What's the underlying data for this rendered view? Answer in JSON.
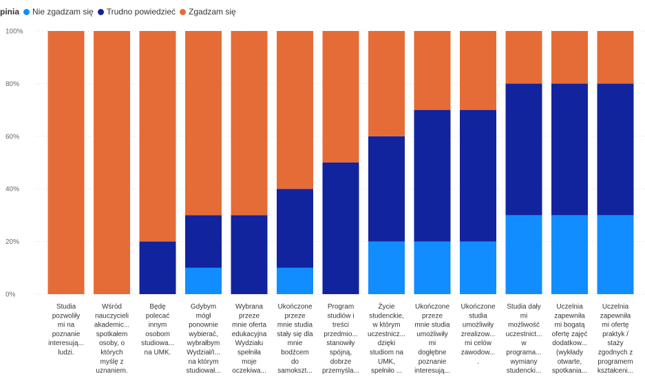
{
  "legend": {
    "title": "pinia",
    "items": [
      {
        "label": "Nie zgadzam się",
        "color": "#118dff"
      },
      {
        "label": "Trudno powiedzieć",
        "color": "#12239e"
      },
      {
        "label": "Zgadzam się",
        "color": "#e66c37"
      }
    ]
  },
  "chart_data": {
    "type": "bar",
    "stacked": true,
    "ylim": [
      0,
      100
    ],
    "ytick_labels": [
      "100%",
      "80%",
      "60%",
      "40%",
      "20%",
      "0%"
    ],
    "grid": true,
    "legend_position": "top-left",
    "categories": [
      [
        "Studia",
        "pozwoliły",
        "mi na",
        "poznanie",
        "interesują...",
        "ludzi."
      ],
      [
        "Wśród",
        "nauczycieli",
        "akademic...",
        "spotkałem",
        "osoby, o",
        "których",
        "myślę z",
        "uznaniem."
      ],
      [
        "Będę",
        "polecać",
        "innym",
        "osobom",
        "studiowa...",
        "na UMK."
      ],
      [
        "Gdybym",
        "mógł",
        "ponownie",
        "wybierać,",
        "wybrałbym",
        "Wydział/I...",
        "na którym",
        "studiował..."
      ],
      [
        "Wybrana",
        "przeze",
        "mnie oferta",
        "edukacyjna",
        "Wydziału",
        "spełniła",
        "moje",
        "oczekiwa..."
      ],
      [
        "Ukończone",
        "przeze",
        "mnie studia",
        "stały się dla",
        "mnie",
        "bodźcem",
        "do",
        "samokszt..."
      ],
      [
        "Program",
        "studiów i",
        "treści",
        "przedmio...",
        "stanowiły",
        "spójną,",
        "dobrze",
        "przemyśla..."
      ],
      [
        "Życie",
        "studenckie,",
        "w którym",
        "uczestnicz...",
        "dzięki",
        "studiom na",
        "UMK,",
        "spełniło ..."
      ],
      [
        "Ukończone",
        "przeze",
        "mnie studia",
        "umożliwiły",
        "mi",
        "dogłębne",
        "poznanie",
        "interesują..."
      ],
      [
        "Ukończone",
        "studia",
        "umożliwiły",
        "zrealizow...",
        "mi celów",
        "zawodow...",
        "."
      ],
      [
        "Studia dały",
        "mi",
        "możliwość",
        "uczestnict...",
        "w",
        "programa...",
        "wymiany",
        "studencki..."
      ],
      [
        "Uczelnia",
        "zapewniła",
        "mi bogatą",
        "ofertę zajęć",
        "dodatkow...",
        "(wykłady",
        "otwarte,",
        "spotkania..."
      ],
      [
        "Uczelnia",
        "zapewniła",
        "mi ofertę",
        "praktyk /",
        "staży",
        "zgodnych z",
        "programem",
        "kształceni..."
      ]
    ],
    "series": [
      {
        "name": "Nie zgadzam się",
        "color": "#118dff",
        "values": [
          0,
          0,
          0,
          10,
          0,
          10,
          0,
          20,
          20,
          20,
          30,
          30,
          30
        ]
      },
      {
        "name": "Trudno powiedzieć",
        "color": "#12239e",
        "values": [
          0,
          0,
          20,
          20,
          30,
          30,
          50,
          40,
          50,
          50,
          50,
          50,
          50
        ]
      },
      {
        "name": "Zgadzam się",
        "color": "#e66c37",
        "values": [
          100,
          100,
          80,
          70,
          70,
          60,
          50,
          40,
          30,
          30,
          20,
          20,
          20
        ]
      }
    ]
  }
}
